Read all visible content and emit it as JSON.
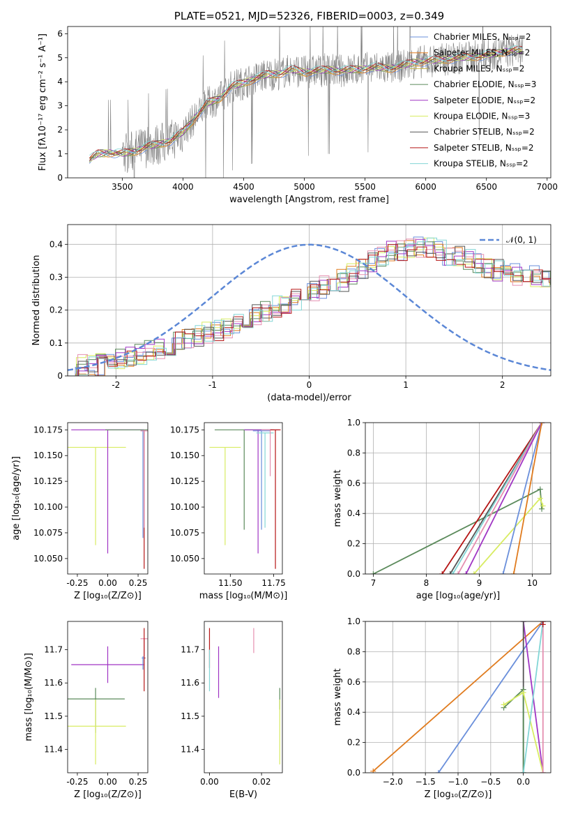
{
  "chart_data": [
    {
      "id": "spectrum",
      "type": "line",
      "title": "PLATE=0521, MJD=52326, FIBERID=0003, z=0.349",
      "xlabel": "wavelength [Angstrom, rest frame]",
      "ylabel": "Flux [fλ10⁻¹⁷ erg cm⁻² s⁻¹ A⁻¹]",
      "xlim": [
        3050,
        7030
      ],
      "ylim": [
        0,
        6.3
      ],
      "xticks": [
        3500,
        4000,
        4500,
        5000,
        5500,
        6000,
        6500,
        7000
      ],
      "yticks": [
        0,
        1,
        2,
        3,
        4,
        5,
        6
      ],
      "grid": false,
      "legend_position": "top-right",
      "data_color": "#808080",
      "model_continuum": {
        "x": [
          3230,
          3300,
          3400,
          3500,
          3600,
          3700,
          3800,
          3900,
          4000,
          4100,
          4200,
          4300,
          4400,
          4500,
          4600,
          4700,
          4800,
          4900,
          5000,
          5100,
          5200,
          5300,
          5400,
          5500,
          5600,
          5700,
          5800,
          5900,
          6000,
          6100,
          6200,
          6300,
          6400,
          6500,
          6600,
          6700,
          6800
        ],
        "y": [
          0.75,
          1.0,
          1.05,
          1.0,
          1.1,
          1.3,
          1.4,
          1.55,
          1.9,
          2.5,
          3.1,
          3.3,
          3.8,
          3.95,
          4.15,
          4.3,
          4.35,
          4.5,
          4.4,
          4.45,
          4.5,
          4.45,
          4.5,
          4.55,
          4.6,
          4.55,
          4.65,
          4.8,
          4.85,
          4.9,
          4.95,
          5.0,
          5.05,
          5.1,
          5.2,
          5.3,
          5.3
        ]
      },
      "series": [
        {
          "name": "Chabrier MILES, N_SSP=2",
          "color": "#6a8fdb"
        },
        {
          "name": "Salpeter MILES, N_SSP=2",
          "color": "#e07b1e"
        },
        {
          "name": "Kroupa MILES, N_SSP=2",
          "color": "#c7b24a"
        },
        {
          "name": "Chabrier ELODIE, N_SSP=3",
          "color": "#5b8a5b"
        },
        {
          "name": "Salpeter ELODIE, N_SSP=2",
          "color": "#a035c4"
        },
        {
          "name": "Kroupa ELODIE, N_SSP=3",
          "color": "#d8ec62"
        },
        {
          "name": "Chabrier STELIB, N_SSP=2",
          "color": "#555555"
        },
        {
          "name": "Salpeter STELIB, N_SSP=2",
          "color": "#b51515"
        },
        {
          "name": "Kroupa STELIB, N_SSP=2",
          "color": "#82d6d6"
        }
      ]
    },
    {
      "id": "residuals",
      "type": "histogram",
      "xlabel": "(data-model)/error",
      "ylabel": "Normed distribution",
      "xlim": [
        -2.5,
        2.5
      ],
      "ylim": [
        0,
        0.46
      ],
      "xticks": [
        -2,
        -1,
        0,
        1,
        2
      ],
      "yticks": [
        0.0,
        0.1,
        0.2,
        0.3,
        0.4
      ],
      "grid": true,
      "legend_position": "top-right",
      "normal_curve": {
        "label": "𝒩(0, 1)",
        "color": "#5b87d6",
        "mean": 0,
        "sigma": 1
      },
      "bin_width": 0.1,
      "bin_start": -2.5,
      "reference_shape": [
        0.035,
        0.03,
        0.03,
        0.035,
        0.04,
        0.05,
        0.055,
        0.065,
        0.075,
        0.085,
        0.09,
        0.1,
        0.11,
        0.12,
        0.13,
        0.14,
        0.15,
        0.16,
        0.175,
        0.185,
        0.2,
        0.21,
        0.22,
        0.235,
        0.245,
        0.26,
        0.27,
        0.28,
        0.29,
        0.31,
        0.33,
        0.35,
        0.36,
        0.375,
        0.38,
        0.385,
        0.39,
        0.385,
        0.38,
        0.37,
        0.36,
        0.35,
        0.34,
        0.33,
        0.32,
        0.315,
        0.31,
        0.305,
        0.3,
        0.295,
        0.29,
        0.285,
        0.28,
        0.27,
        0.26,
        0.25,
        0.24,
        0.23,
        0.22,
        0.21,
        0.2,
        0.19,
        0.18,
        0.17,
        0.16,
        0.15,
        0.14,
        0.13,
        0.12,
        0.11,
        0.1,
        0.095,
        0.09,
        0.085,
        0.08,
        0.075,
        0.07,
        0.065,
        0.06,
        0.055,
        0.05,
        0.045,
        0.04,
        0.04,
        0.035,
        0.03,
        0.03,
        0.025,
        0.025,
        0.02,
        0.02,
        0.02,
        0.02,
        0.015,
        0.015,
        0.015,
        0.015,
        0.01,
        0.01,
        0.01
      ],
      "series_colors": [
        "#6a8fdb",
        "#e07b1e",
        "#d8ec62",
        "#5b8a5b",
        "#a035c4",
        "#e58fb0",
        "#555555",
        "#b51515",
        "#82d6d6"
      ]
    },
    {
      "id": "age-vs-Z",
      "type": "errorbar",
      "xlabel": "Z [log₁₀(Z/Z⊙)]",
      "ylabel": "age  [log₁₀(age/yr)]",
      "xlim": [
        -0.33,
        0.33
      ],
      "ylim": [
        10.035,
        10.182
      ],
      "xticks": [
        "-0.25",
        "0.00",
        "0.25"
      ],
      "xtick_values": [
        -0.25,
        0.0,
        0.25
      ],
      "yticks": [
        "10.050",
        "10.075",
        "10.100",
        "10.125",
        "10.150",
        "10.175"
      ],
      "ytick_values": [
        10.05,
        10.075,
        10.1,
        10.125,
        10.15,
        10.175
      ],
      "points": [
        {
          "x": -0.1,
          "y": 10.158,
          "xerr": 0.25,
          "ylo": 10.063,
          "yhi": 10.158,
          "color": "#d8ec62"
        },
        {
          "x": 0.0,
          "y": 10.175,
          "xerr": 0.3,
          "ylo": 10.055,
          "yhi": 10.175,
          "color": "#a035c4"
        },
        {
          "x": 0.28,
          "y": 10.175,
          "xerr": 0.3,
          "ylo": 10.175,
          "yhi": 10.175,
          "color": "#5b8a5b"
        },
        {
          "x": 0.29,
          "y": 10.174,
          "xerr": 0.02,
          "ylo": 10.07,
          "yhi": 10.175,
          "color": "#6a8fdb"
        },
        {
          "x": 0.3,
          "y": 10.078,
          "xerr": 0.0,
          "ylo": 10.04,
          "yhi": 10.175,
          "color": "#b51515"
        },
        {
          "x": 0.3,
          "y": 10.174,
          "xerr": 0.03,
          "ylo": 10.08,
          "yhi": 10.175,
          "color": "#e58fb0"
        }
      ]
    },
    {
      "id": "age-vs-mass",
      "type": "errorbar",
      "xlabel": "mass [log₁₀(M/M⊙)]",
      "xlim": [
        11.35,
        11.8
      ],
      "ylim": [
        10.035,
        10.182
      ],
      "xticks": [
        "11.50",
        "11.75"
      ],
      "xtick_values": [
        11.5,
        11.75
      ],
      "yticks": [
        "10.050",
        "10.075",
        "10.100",
        "10.125",
        "10.150",
        "10.175"
      ],
      "ytick_values": [
        10.05,
        10.075,
        10.1,
        10.125,
        10.15,
        10.175
      ],
      "points": [
        {
          "x": 11.47,
          "y": 10.158,
          "xerr": 0.09,
          "ylo": 10.063,
          "yhi": 10.158,
          "color": "#d8ec62"
        },
        {
          "x": 11.58,
          "y": 10.175,
          "xerr": 0.17,
          "ylo": 10.078,
          "yhi": 10.175,
          "color": "#5b8a5b"
        },
        {
          "x": 11.66,
          "y": 10.175,
          "xerr": 0.08,
          "ylo": 10.055,
          "yhi": 10.175,
          "color": "#a035c4"
        },
        {
          "x": 11.68,
          "y": 10.174,
          "xerr": 0.05,
          "ylo": 10.078,
          "yhi": 10.174,
          "color": "#6a8fdb"
        },
        {
          "x": 11.7,
          "y": 10.172,
          "xerr": 0.05,
          "ylo": 10.08,
          "yhi": 10.172,
          "color": "#82d6d6"
        },
        {
          "x": 11.73,
          "y": 10.175,
          "xerr": 0.05,
          "ylo": 10.13,
          "yhi": 10.175,
          "color": "#e58fb0"
        },
        {
          "x": 11.76,
          "y": 10.175,
          "xerr": 0.03,
          "ylo": 10.04,
          "yhi": 10.175,
          "color": "#b51515"
        }
      ]
    },
    {
      "id": "mass-weight-vs-age",
      "type": "line",
      "xlabel": "age  [log₁₀(age/yr)]",
      "ylabel": "mass weight",
      "xlim": [
        6.85,
        10.35
      ],
      "ylim": [
        0,
        1
      ],
      "xticks": [
        7,
        8,
        9,
        10
      ],
      "yticks": [
        "0.0",
        "0.2",
        "0.4",
        "0.6",
        "0.8",
        "1.0"
      ],
      "ytick_values": [
        0,
        0.2,
        0.4,
        0.6,
        0.8,
        1.0
      ],
      "grid": true,
      "lines": [
        {
          "color": "#5b8a5b",
          "points": [
            [
              7.0,
              0.0
            ],
            [
              10.15,
              0.56
            ],
            [
              10.18,
              0.43
            ]
          ]
        },
        {
          "color": "#b51515",
          "points": [
            [
              8.3,
              0.0
            ],
            [
              10.18,
              1.0
            ]
          ]
        },
        {
          "color": "#555555",
          "points": [
            [
              8.45,
              0.0
            ],
            [
              10.18,
              1.0
            ]
          ]
        },
        {
          "color": "#82d6d6",
          "points": [
            [
              8.5,
              0.0
            ],
            [
              10.18,
              1.0
            ]
          ]
        },
        {
          "color": "#e58fb0",
          "points": [
            [
              8.6,
              0.0
            ],
            [
              10.18,
              1.0
            ]
          ]
        },
        {
          "color": "#a035c4",
          "points": [
            [
              8.75,
              0.0
            ],
            [
              10.18,
              1.0
            ]
          ]
        },
        {
          "color": "#d8ec62",
          "points": [
            [
              8.9,
              0.0
            ],
            [
              10.15,
              0.5
            ],
            [
              10.2,
              0.45
            ]
          ]
        },
        {
          "color": "#6a8fdb",
          "points": [
            [
              9.45,
              0.0
            ],
            [
              10.18,
              1.0
            ]
          ]
        },
        {
          "color": "#e07b1e",
          "points": [
            [
              9.65,
              0.0
            ],
            [
              10.18,
              1.0
            ]
          ]
        }
      ]
    },
    {
      "id": "mass-vs-Z",
      "type": "errorbar",
      "xlabel": "Z [log₁₀(Z/Z⊙)]",
      "ylabel": "mass [log₁₀(M/M⊙)]",
      "xlim": [
        -0.33,
        0.33
      ],
      "ylim": [
        11.33,
        11.785
      ],
      "xticks": [
        "-0.25",
        "0.00",
        "0.25"
      ],
      "xtick_values": [
        -0.25,
        0.0,
        0.25
      ],
      "yticks": [
        "11.4",
        "11.5",
        "11.6",
        "11.7"
      ],
      "ytick_values": [
        11.4,
        11.5,
        11.6,
        11.7
      ],
      "points": [
        {
          "x": 0.0,
          "y": 11.655,
          "xerr": 0.3,
          "ylo": 11.6,
          "yhi": 11.71,
          "color": "#a035c4"
        },
        {
          "x": -0.1,
          "y": 11.552,
          "xerr": 0.24,
          "ylo": 11.45,
          "yhi": 11.585,
          "color": "#5b8a5b"
        },
        {
          "x": -0.1,
          "y": 11.47,
          "xerr": 0.25,
          "ylo": 11.355,
          "yhi": 11.55,
          "color": "#d8ec62"
        },
        {
          "x": 0.3,
          "y": 11.733,
          "xerr": 0.03,
          "ylo": 11.68,
          "yhi": 11.735,
          "color": "#e58fb0"
        },
        {
          "x": 0.3,
          "y": 11.675,
          "xerr": 0.01,
          "ylo": 11.575,
          "yhi": 11.765,
          "color": "#b51515"
        },
        {
          "x": 0.29,
          "y": 11.675,
          "xerr": 0.01,
          "ylo": 11.64,
          "yhi": 11.68,
          "color": "#6a8fdb"
        }
      ]
    },
    {
      "id": "mass-vs-EBV",
      "type": "errorbar",
      "xlabel": "E(B-V)",
      "xlim": [
        -0.002,
        0.028
      ],
      "ylim": [
        11.33,
        11.785
      ],
      "xticks": [
        "0.00",
        "0.02"
      ],
      "xtick_values": [
        0.0,
        0.02
      ],
      "yticks": [
        "11.4",
        "11.5",
        "11.6",
        "11.7"
      ],
      "ytick_values": [
        11.4,
        11.5,
        11.6,
        11.7
      ],
      "points": [
        {
          "x": 0.0,
          "y": 11.7,
          "xerr": 0.0,
          "ylo": 11.645,
          "yhi": 11.765,
          "color": "#b51515"
        },
        {
          "x": 0.0,
          "y": 11.68,
          "xerr": 0.0,
          "ylo": 11.575,
          "yhi": 11.7,
          "color": "#82d6d6"
        },
        {
          "x": 0.0035,
          "y": 11.63,
          "xerr": 0.0,
          "ylo": 11.555,
          "yhi": 11.71,
          "color": "#a035c4"
        },
        {
          "x": 0.017,
          "y": 11.73,
          "xerr": 0.0,
          "ylo": 11.69,
          "yhi": 11.765,
          "color": "#e58fb0"
        },
        {
          "x": 0.027,
          "y": 11.56,
          "xerr": 0.0,
          "ylo": 11.52,
          "yhi": 11.585,
          "color": "#5b8a5b"
        },
        {
          "x": 0.027,
          "y": 11.45,
          "xerr": 0.0,
          "ylo": 11.355,
          "yhi": 11.55,
          "color": "#d8ec62"
        }
      ]
    },
    {
      "id": "mass-weight-vs-Z",
      "type": "line",
      "xlabel": "Z [log₁₀(Z/Z⊙)]",
      "ylabel": "mass weight",
      "xlim": [
        -2.42,
        0.42
      ],
      "ylim": [
        0,
        1
      ],
      "xticks": [
        "−2.0",
        "−1.5",
        "−1.0",
        "−0.5",
        "0.0"
      ],
      "xtick_values": [
        -2.0,
        -1.5,
        -1.0,
        -0.5,
        0.0
      ],
      "yticks": [
        "0.0",
        "0.2",
        "0.4",
        "0.6",
        "0.8",
        "1.0"
      ],
      "ytick_values": [
        0,
        0.2,
        0.4,
        0.6,
        0.8,
        1.0
      ],
      "grid": true,
      "lines": [
        {
          "color": "#e07b1e",
          "points": [
            [
              -2.3,
              0.01
            ],
            [
              0.3,
              1.0
            ]
          ]
        },
        {
          "color": "#6a8fdb",
          "points": [
            [
              -1.3,
              0.0
            ],
            [
              0.3,
              1.0
            ]
          ]
        },
        {
          "color": "#a035c4",
          "points": [
            [
              0.0,
              1.0
            ],
            [
              0.3,
              0.0
            ]
          ]
        },
        {
          "color": "#555555",
          "points": [
            [
              0.0,
              1.0
            ],
            [
              0.0,
              0.0
            ]
          ]
        },
        {
          "color": "#5b8a5b",
          "points": [
            [
              -0.3,
              0.43
            ],
            [
              0.0,
              0.55
            ],
            [
              0.0,
              0.0
            ]
          ]
        },
        {
          "color": "#d8ec62",
          "points": [
            [
              -0.3,
              0.45
            ],
            [
              0.0,
              0.53
            ],
            [
              0.3,
              0.0
            ]
          ]
        },
        {
          "color": "#e58fb0",
          "points": [
            [
              0.3,
              0.0
            ],
            [
              0.3,
              1.0
            ]
          ]
        },
        {
          "color": "#82d6d6",
          "points": [
            [
              0.0,
              0.0
            ],
            [
              0.3,
              1.0
            ]
          ]
        },
        {
          "color": "#b51515",
          "points": [
            [
              0.3,
              1.0
            ],
            [
              0.3,
              0.98
            ]
          ]
        }
      ]
    }
  ]
}
